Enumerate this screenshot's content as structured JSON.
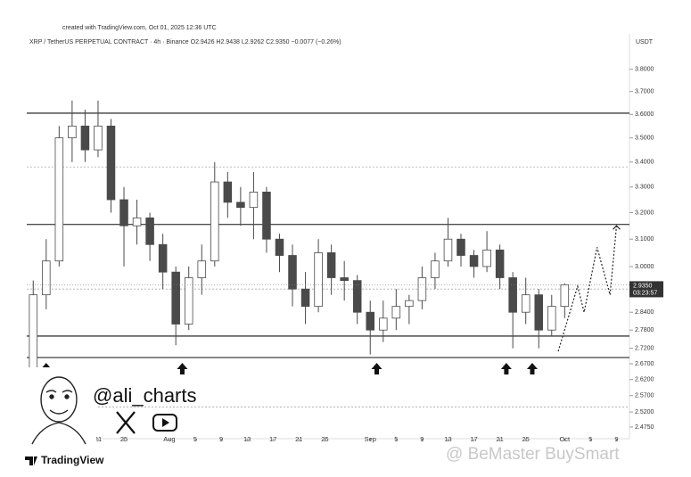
{
  "chart_data": {
    "type": "candlestick",
    "watermark_header": "created with TradingView.com, Oct 01, 2025 12:36 UTC",
    "title": "XRP / TetherUS PERPETUAL CONTRACT · 4h · Binance   O2.9426  H2.9438  L2.9262  C2.9350  −0.0077 (−0.26%)",
    "currency": "USDT",
    "author": "@ali_charts",
    "logo": "TradingView",
    "watermark": "@ BeMaster BuySmart",
    "log_scale": true,
    "up_color": "#ffffff",
    "down_color": "#4a4a4a",
    "outline_color": "#4a4a4a",
    "x": [
      "07-11",
      "07-13",
      "07-15",
      "07-17",
      "07-19",
      "07-21",
      "07-23",
      "07-25",
      "07-27",
      "07-29",
      "07-31",
      "08-02",
      "08-04",
      "08-06",
      "08-08",
      "08-10",
      "08-12",
      "08-14",
      "08-16",
      "08-18",
      "08-20",
      "08-22",
      "08-24",
      "08-26",
      "08-28",
      "08-30",
      "09-01",
      "09-03",
      "09-05",
      "09-07",
      "09-09",
      "09-11",
      "09-13",
      "09-15",
      "09-17",
      "09-19",
      "09-21",
      "09-23",
      "09-25",
      "09-27",
      "09-29",
      "10-01"
    ],
    "open": [
      2.5,
      2.9,
      3.02,
      3.5,
      3.55,
      3.45,
      3.55,
      3.25,
      3.15,
      3.18,
      3.08,
      2.98,
      2.8,
      2.96,
      3.02,
      3.32,
      3.24,
      3.22,
      3.28,
      3.1,
      3.04,
      2.92,
      2.86,
      3.05,
      2.96,
      2.95,
      2.84,
      2.78,
      2.82,
      2.86,
      2.88,
      2.96,
      3.02,
      3.1,
      3.04,
      3.0,
      3.06,
      2.96,
      2.84,
      2.9,
      2.78,
      2.86
    ],
    "high": [
      2.95,
      3.1,
      3.55,
      3.66,
      3.62,
      3.66,
      3.58,
      3.3,
      3.25,
      3.2,
      3.12,
      3.0,
      3.0,
      3.08,
      3.4,
      3.36,
      3.3,
      3.36,
      3.3,
      3.12,
      3.08,
      2.98,
      3.1,
      3.08,
      3.02,
      2.97,
      2.88,
      2.88,
      2.92,
      2.9,
      3.0,
      3.05,
      3.18,
      3.12,
      3.06,
      3.13,
      3.08,
      2.98,
      2.96,
      2.92,
      2.9,
      2.94
    ],
    "low": [
      2.45,
      2.85,
      3.0,
      3.4,
      3.4,
      3.42,
      3.2,
      3.0,
      3.08,
      3.02,
      2.92,
      2.73,
      2.78,
      2.9,
      3.0,
      3.18,
      3.15,
      3.1,
      3.05,
      2.98,
      2.86,
      2.8,
      2.84,
      2.9,
      2.88,
      2.8,
      2.7,
      2.74,
      2.78,
      2.8,
      2.85,
      2.92,
      3.0,
      3.0,
      2.96,
      2.98,
      2.92,
      2.72,
      2.8,
      2.72,
      2.76,
      2.82
    ],
    "close": [
      2.9,
      3.02,
      3.5,
      3.55,
      3.45,
      3.55,
      3.25,
      3.15,
      3.18,
      3.08,
      2.98,
      2.8,
      2.96,
      3.02,
      3.32,
      3.24,
      3.22,
      3.28,
      3.1,
      3.04,
      2.92,
      2.86,
      3.05,
      2.96,
      2.95,
      2.84,
      2.78,
      2.82,
      2.86,
      2.88,
      2.96,
      3.02,
      3.1,
      3.04,
      3.0,
      3.06,
      2.96,
      2.84,
      2.9,
      2.78,
      2.86,
      2.935
    ],
    "levels": [
      {
        "value": 3.605,
        "style": "solid"
      },
      {
        "value": 3.38,
        "style": "dotted"
      },
      {
        "value": 3.155,
        "style": "solid"
      },
      {
        "value": 2.92,
        "style": "dotted"
      },
      {
        "value": 2.76,
        "style": "solid"
      },
      {
        "value": 2.69,
        "style": "solid"
      },
      {
        "value": 2.535,
        "style": "dotted"
      }
    ],
    "arrows": [
      "07-13",
      "08-03",
      "09-02",
      "09-22",
      "09-26"
    ],
    "projection": {
      "x": [
        "09-30",
        "10-03",
        "10-04",
        "10-06",
        "10-08",
        "10-09"
      ],
      "values": [
        2.71,
        2.93,
        2.84,
        3.07,
        2.9,
        3.15
      ]
    },
    "last_price": {
      "value": 2.935,
      "label": "2.9350"
    },
    "countdown": "03:23:57",
    "xlim": [
      "07-10",
      "10-11"
    ],
    "ylim": [
      2.446,
      3.956
    ],
    "yticks": [
      {
        "value": 3.8,
        "label": "3.8000"
      },
      {
        "value": 3.7,
        "label": "3.7000"
      },
      {
        "value": 3.6,
        "label": "3.6000"
      },
      {
        "value": 3.5,
        "label": "3.5000"
      },
      {
        "value": 3.4,
        "label": "3.4000"
      },
      {
        "value": 3.3,
        "label": "3.3000"
      },
      {
        "value": 3.2,
        "label": "3.2000"
      },
      {
        "value": 3.1,
        "label": "3.1000"
      },
      {
        "value": 3.0,
        "label": "3.0000"
      },
      {
        "value": 2.84,
        "label": "2.8400"
      },
      {
        "value": 2.78,
        "label": "2.7800"
      },
      {
        "value": 2.72,
        "label": "2.7200"
      },
      {
        "value": 2.67,
        "label": "2.6700"
      },
      {
        "value": 2.62,
        "label": "2.6200"
      },
      {
        "value": 2.57,
        "label": "2.5700"
      },
      {
        "value": 2.52,
        "label": "2.5200"
      },
      {
        "value": 2.475,
        "label": "2.4750"
      }
    ],
    "xticks": [
      {
        "value": "07-13",
        "label": "13"
      },
      {
        "value": "07-21",
        "label": "21"
      },
      {
        "value": "07-25",
        "label": "25"
      },
      {
        "value": "08-01",
        "label": "Aug"
      },
      {
        "value": "08-05",
        "label": "5"
      },
      {
        "value": "08-09",
        "label": "9"
      },
      {
        "value": "08-13",
        "label": "13"
      },
      {
        "value": "08-17",
        "label": "17"
      },
      {
        "value": "08-21",
        "label": "21"
      },
      {
        "value": "08-25",
        "label": "25"
      },
      {
        "value": "09-01",
        "label": "Sep"
      },
      {
        "value": "09-05",
        "label": "5"
      },
      {
        "value": "09-09",
        "label": "9"
      },
      {
        "value": "09-13",
        "label": "13"
      },
      {
        "value": "09-17",
        "label": "17"
      },
      {
        "value": "09-21",
        "label": "21"
      },
      {
        "value": "09-25",
        "label": "25"
      },
      {
        "value": "10-01",
        "label": "Oct"
      },
      {
        "value": "10-05",
        "label": "5"
      },
      {
        "value": "10-09",
        "label": "9"
      }
    ]
  }
}
